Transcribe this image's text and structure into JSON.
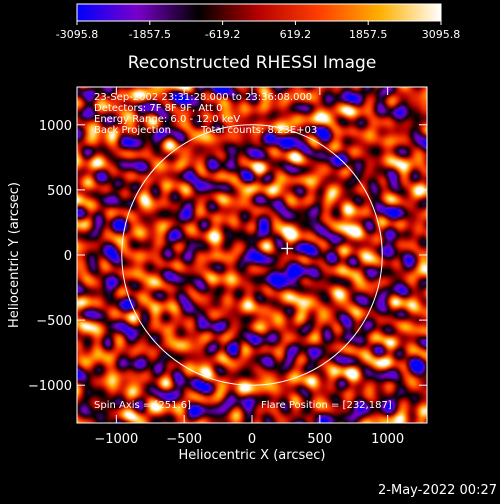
{
  "colorbar": {
    "ticks": [
      "-3095.8",
      "-1857.5",
      "-619.2",
      "619.2",
      "1857.5",
      "3095.8"
    ],
    "stops": [
      "#0000ff",
      "#7a00c8",
      "#000000",
      "#b80000",
      "#ff4000",
      "#ffb000",
      "#ffffff"
    ]
  },
  "annotations": {
    "time": "23-Sep-2002 23:31:28.000 to 23:36:08.000",
    "detectors": "Detectors: 7F 8F 9F, Att 0",
    "energy": "Energy Range: 6.0 - 12.0 keV",
    "method": "Back Projection",
    "counts": "Total counts: 8.23E+03",
    "spin_axis": "Spin Axis = [251.6]",
    "flare_position": "Flare Position = [232,187]"
  },
  "footer": {
    "date": "2-May-2022 00:27"
  },
  "chart_data": {
    "type": "heatmap",
    "title": "Reconstructed RHESSI Image",
    "xlabel": "Heliocentric X (arcsec)",
    "ylabel": "Heliocentric Y (arcsec)",
    "xlim": [
      -1290,
      1290
    ],
    "ylim": [
      -1290,
      1290
    ],
    "xticks": [
      -1000,
      -500,
      0,
      500,
      1000
    ],
    "yticks": [
      -1000,
      -500,
      0,
      500,
      1000
    ],
    "xtick_labels": [
      "−1000",
      "−500",
      "0",
      "500",
      "1000"
    ],
    "ytick_labels": [
      "−1000",
      "−500",
      "0",
      "500",
      "1000"
    ],
    "value_range": [
      -3095.8,
      3095.8
    ],
    "solar_limb_radius": 960,
    "marker": {
      "x": 260,
      "y": 50,
      "symbol": "+"
    },
    "features": [
      {
        "kind": "peak",
        "x": 260,
        "y": 190,
        "value": 3095.8
      },
      {
        "kind": "peak",
        "x": 330,
        "y": -300,
        "value": 2200
      },
      {
        "kind": "peak",
        "x": 700,
        "y": 230,
        "value": 1700
      },
      {
        "kind": "trough",
        "x": 270,
        "y": -150,
        "value": -3095.8
      }
    ]
  }
}
